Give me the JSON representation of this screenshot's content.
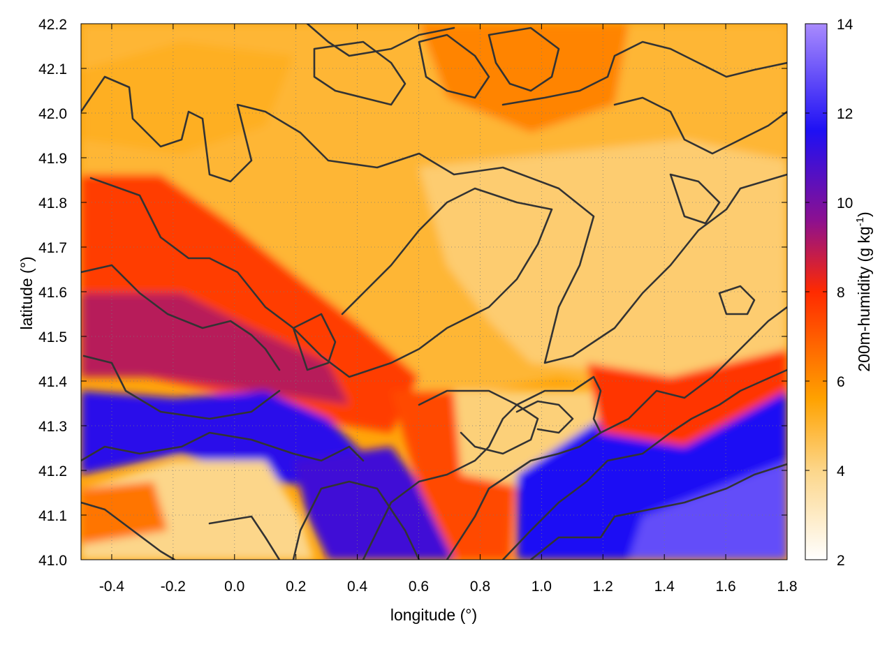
{
  "chart_data": {
    "type": "heatmap",
    "xlabel": "longitude (°)",
    "ylabel": "latitude (°)",
    "colorbar_label_main": "200m-humidity (g kg",
    "colorbar_label_sup": "-1",
    "colorbar_label_end": ")",
    "xlim": [
      -0.5,
      1.8
    ],
    "ylim": [
      41.0,
      42.2
    ],
    "clim": [
      2,
      14
    ],
    "x_ticks": [
      -0.4,
      -0.2,
      0.0,
      0.2,
      0.4,
      0.6,
      0.8,
      1.0,
      1.2,
      1.4,
      1.6,
      1.8
    ],
    "x_tick_labels": [
      "-0.4",
      "-0.2",
      "0.0",
      "0.2",
      "0.4",
      "0.6",
      "0.8",
      "1.0",
      "1.2",
      "1.4",
      "1.6",
      "1.8"
    ],
    "y_ticks": [
      41.0,
      41.1,
      41.2,
      41.3,
      41.4,
      41.5,
      41.6,
      41.7,
      41.8,
      41.9,
      42.0,
      42.1,
      42.2
    ],
    "y_tick_labels": [
      "41.0",
      "41.1",
      "41.2",
      "41.3",
      "41.4",
      "41.5",
      "41.6",
      "41.7",
      "41.8",
      "41.9",
      "42.0",
      "42.1",
      "42.2"
    ],
    "colorbar_ticks": [
      2,
      4,
      6,
      8,
      10,
      12,
      14
    ],
    "colorbar_tick_labels": [
      "2",
      "4",
      "6",
      "8",
      "10",
      "12",
      "14"
    ],
    "colormap": [
      "#ffffff",
      "#fcd68a",
      "#ffa200",
      "#ff2a00",
      "#8c1090",
      "#1e10f4",
      "#a98bfd"
    ],
    "colormap_stops": [
      2,
      4,
      5.6,
      8,
      9.6,
      11.6,
      14
    ],
    "contour_color": "#333333",
    "grid": true,
    "humidity_features": [
      {
        "lon": 0.1,
        "lat": 41.3,
        "value": 11.5
      },
      {
        "lon": -0.4,
        "lat": 41.28,
        "value": 11.0
      },
      {
        "lon": 0.55,
        "lat": 41.08,
        "value": 11.5
      },
      {
        "lon": 1.5,
        "lat": 41.12,
        "value": 12.0
      },
      {
        "lon": 1.65,
        "lat": 41.05,
        "value": 13.0
      },
      {
        "lon": -0.25,
        "lat": 41.5,
        "value": 9.0
      },
      {
        "lon": 0.3,
        "lat": 41.5,
        "value": 7.5
      },
      {
        "lon": -0.1,
        "lat": 41.75,
        "value": 7.2
      },
      {
        "lon": 0.7,
        "lat": 41.25,
        "value": 7.5
      },
      {
        "lon": 1.3,
        "lat": 41.3,
        "value": 8.5
      },
      {
        "lon": 0.2,
        "lat": 41.1,
        "value": 3.8
      },
      {
        "lon": 0.95,
        "lat": 41.3,
        "value": 4.2
      },
      {
        "lon": 1.3,
        "lat": 41.8,
        "value": 4.0
      },
      {
        "lon": 0.6,
        "lat": 41.85,
        "value": 4.5
      },
      {
        "lon": 0.0,
        "lat": 42.05,
        "value": 5.0
      },
      {
        "lon": 0.8,
        "lat": 42.12,
        "value": 6.0
      },
      {
        "lon": 1.5,
        "lat": 42.05,
        "value": 5.8
      }
    ]
  }
}
